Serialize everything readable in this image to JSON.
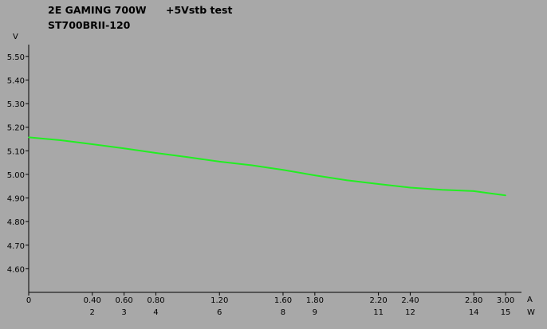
{
  "chart_data": {
    "type": "line",
    "title": "2E GAMING 700W",
    "subtitle": "ST700BRII-120",
    "test_label": "+5Vstb test",
    "ylabel": "V",
    "xlabel": "A",
    "x2label": "W",
    "ylim": [
      4.5,
      5.55
    ],
    "xlim": [
      0,
      3.1
    ],
    "yticks": [
      "4.60",
      "4.70",
      "4.80",
      "4.90",
      "5.00",
      "5.10",
      "5.20",
      "5.30",
      "5.40",
      "5.50"
    ],
    "xticks": [
      "0",
      "0.40",
      "0.60",
      "0.80",
      "1.20",
      "1.60",
      "1.80",
      "2.20",
      "2.40",
      "2.80",
      "3.00"
    ],
    "x2ticks": [
      "",
      "2",
      "3",
      "4",
      "6",
      "8",
      "9",
      "11",
      "12",
      "14",
      "15"
    ],
    "line_color": "#22ee22",
    "series": [
      {
        "x": [
          0,
          0.2,
          0.4,
          0.6,
          0.8,
          1.0,
          1.2,
          1.4,
          1.6,
          1.8,
          2.0,
          2.2,
          2.4,
          2.6,
          2.8,
          2.9,
          3.0
        ],
        "values": [
          5.157,
          5.145,
          5.128,
          5.11,
          5.091,
          5.073,
          5.054,
          5.039,
          5.019,
          4.996,
          4.975,
          4.959,
          4.944,
          4.935,
          4.929,
          4.92,
          4.911
        ]
      }
    ]
  }
}
